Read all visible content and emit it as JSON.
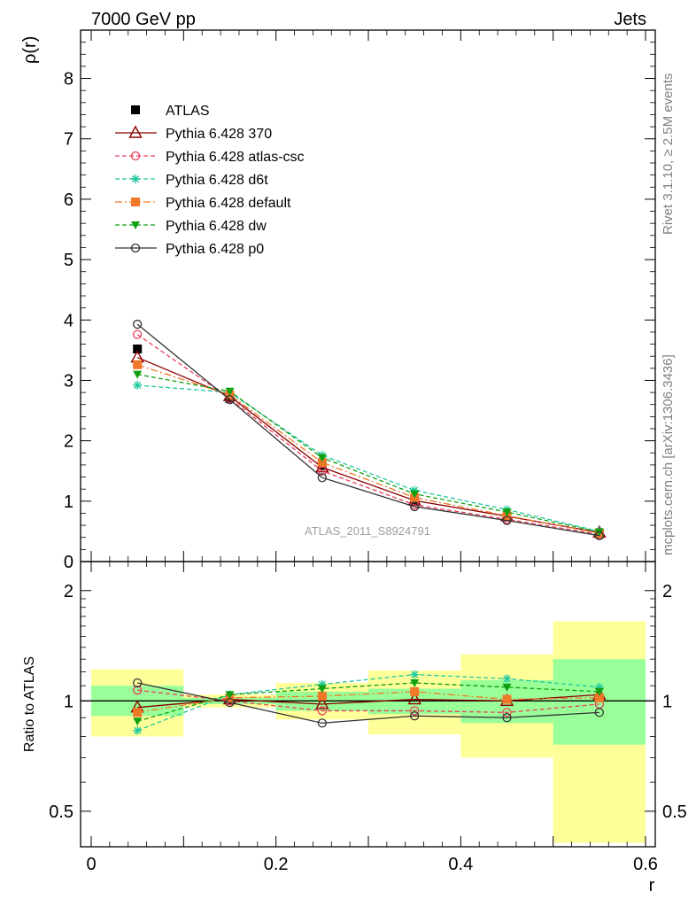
{
  "header": {
    "left": "7000 GeV pp",
    "right": "Jets"
  },
  "side_labels": {
    "rivet": "Rivet 3.1.10, ≥ 2.5M events",
    "mcplots": "mcplots.cern.ch [arXiv:1306.3436]"
  },
  "watermark": "ATLAS_2011_S8924791",
  "chart_data": [
    {
      "type": "line",
      "panel": "main",
      "ylabel": "ρ(r)",
      "xlabel": "",
      "xlim": [
        0,
        0.6
      ],
      "ylim": [
        0,
        8.8
      ],
      "x_ticks": [
        0,
        0.1,
        0.2,
        0.3,
        0.4,
        0.5,
        0.6
      ],
      "y_ticks": [
        0,
        1,
        2,
        3,
        4,
        5,
        6,
        7,
        8
      ],
      "y_tick_labels": [
        "0",
        "1",
        "2",
        "3",
        "4",
        "5",
        "6",
        "7",
        "8"
      ],
      "legend_position": "top-left",
      "x": [
        0.05,
        0.15,
        0.25,
        0.35,
        0.45,
        0.55
      ],
      "series": [
        {
          "name": "ATLAS",
          "color": "#000000",
          "marker": "square-filled",
          "line": "none",
          "values": [
            3.52,
            2.7,
            1.59,
            1.0,
            0.75,
            0.46
          ]
        },
        {
          "name": "Pythia 6.428 370",
          "color": "#8b0000",
          "marker": "triangle-open",
          "line": "solid",
          "values": [
            3.38,
            2.74,
            1.56,
            1.01,
            0.75,
            0.48
          ]
        },
        {
          "name": "Pythia 6.428 atlas-csc",
          "color": "#e8405c",
          "marker": "circle-open",
          "line": "dashed",
          "values": [
            3.76,
            2.7,
            1.5,
            0.94,
            0.7,
            0.45
          ]
        },
        {
          "name": "Pythia 6.428 d6t",
          "color": "#20c8a0",
          "marker": "star",
          "line": "dashed",
          "values": [
            2.92,
            2.8,
            1.76,
            1.18,
            0.86,
            0.5
          ]
        },
        {
          "name": "Pythia 6.428 default",
          "color": "#f07828",
          "marker": "square-filled",
          "line": "dashdot",
          "values": [
            3.26,
            2.76,
            1.64,
            1.06,
            0.76,
            0.47
          ]
        },
        {
          "name": "Pythia 6.428 dw",
          "color": "#10a010",
          "marker": "triangle-down-filled",
          "line": "dashed",
          "values": [
            3.1,
            2.82,
            1.72,
            1.12,
            0.82,
            0.49
          ]
        },
        {
          "name": "Pythia 6.428 p0",
          "color": "#333333",
          "marker": "circle-open",
          "line": "solid",
          "values": [
            3.93,
            2.68,
            1.39,
            0.91,
            0.68,
            0.43
          ]
        }
      ]
    },
    {
      "type": "line",
      "panel": "ratio",
      "ylabel": "Ratio to ATLAS",
      "xlabel": "r",
      "xlim": [
        0,
        0.6
      ],
      "ylim": [
        0.4,
        2.4
      ],
      "log_y": true,
      "x_ticks": [
        0,
        0.2,
        0.4,
        0.6
      ],
      "x_tick_labels": [
        "0",
        "0.2",
        "0.4",
        "0.6"
      ],
      "y_ticks": [
        0.5,
        1,
        2
      ],
      "y_tick_labels": [
        "0.5",
        "1",
        "2"
      ],
      "bins": [
        {
          "lo": 0.0,
          "hi": 0.1,
          "green": [
            0.91,
            1.1
          ],
          "yellow": [
            0.8,
            1.22
          ]
        },
        {
          "lo": 0.1,
          "hi": 0.2,
          "green": [
            0.98,
            1.02
          ],
          "yellow": [
            0.96,
            1.04
          ]
        },
        {
          "lo": 0.2,
          "hi": 0.3,
          "green": [
            0.94,
            1.06
          ],
          "yellow": [
            0.89,
            1.12
          ]
        },
        {
          "lo": 0.3,
          "hi": 0.4,
          "green": [
            0.92,
            1.08
          ],
          "yellow": [
            0.81,
            1.21
          ]
        },
        {
          "lo": 0.4,
          "hi": 0.5,
          "green": [
            0.87,
            1.14
          ],
          "yellow": [
            0.7,
            1.34
          ]
        },
        {
          "lo": 0.5,
          "hi": 0.6,
          "green": [
            0.76,
            1.3
          ],
          "yellow": [
            0.41,
            1.65
          ]
        }
      ],
      "x": [
        0.05,
        0.15,
        0.25,
        0.35,
        0.45,
        0.55
      ],
      "series": [
        {
          "name": "Pythia 6.428 370",
          "color": "#8b0000",
          "marker": "triangle-open",
          "line": "solid",
          "values": [
            0.96,
            1.01,
            0.98,
            1.01,
            1.0,
            1.04
          ]
        },
        {
          "name": "Pythia 6.428 atlas-csc",
          "color": "#e8405c",
          "marker": "circle-open",
          "line": "dashed",
          "values": [
            1.07,
            1.0,
            0.94,
            0.94,
            0.93,
            0.98
          ]
        },
        {
          "name": "Pythia 6.428 d6t",
          "color": "#20c8a0",
          "marker": "star",
          "line": "dashed",
          "values": [
            0.83,
            1.04,
            1.11,
            1.18,
            1.15,
            1.09
          ]
        },
        {
          "name": "Pythia 6.428 default",
          "color": "#f07828",
          "marker": "square-filled",
          "line": "dashdot",
          "values": [
            0.93,
            1.02,
            1.03,
            1.06,
            1.01,
            1.02
          ]
        },
        {
          "name": "Pythia 6.428 dw",
          "color": "#10a010",
          "marker": "triangle-down-filled",
          "line": "dashed",
          "values": [
            0.88,
            1.04,
            1.08,
            1.12,
            1.09,
            1.06
          ]
        },
        {
          "name": "Pythia 6.428 p0",
          "color": "#333333",
          "marker": "circle-open",
          "line": "solid",
          "values": [
            1.12,
            0.99,
            0.87,
            0.91,
            0.9,
            0.93
          ]
        }
      ]
    }
  ]
}
